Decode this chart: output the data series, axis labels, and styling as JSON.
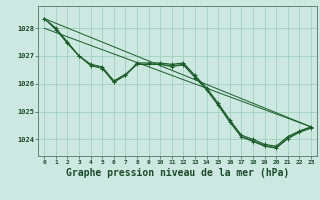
{
  "background_color": "#cce8e0",
  "grid_color": "#99ccbb",
  "line_color": "#1a5c28",
  "marker_color": "#1a5c28",
  "title": "Graphe pression niveau de la mer (hPa)",
  "title_fontsize": 7.0,
  "xlim": [
    -0.5,
    23.5
  ],
  "ylim": [
    1023.4,
    1028.8
  ],
  "yticks": [
    1024,
    1025,
    1026,
    1027,
    1028
  ],
  "xticks": [
    0,
    1,
    2,
    3,
    4,
    5,
    6,
    7,
    8,
    9,
    10,
    11,
    12,
    13,
    14,
    15,
    16,
    17,
    18,
    19,
    20,
    21,
    22,
    23
  ],
  "series_main": {
    "x": [
      0,
      1,
      2,
      3,
      4,
      5,
      6,
      7,
      8,
      9,
      10,
      11,
      12,
      13,
      14,
      15,
      16,
      17,
      18,
      19,
      20,
      21,
      22,
      23
    ],
    "y": [
      1028.35,
      1028.0,
      1027.5,
      1027.0,
      1026.7,
      1026.6,
      1026.1,
      1026.3,
      1026.75,
      1026.75,
      1026.75,
      1026.7,
      1026.75,
      1026.3,
      1025.85,
      1025.3,
      1024.7,
      1024.15,
      1024.0,
      1023.82,
      1023.75,
      1024.1,
      1024.3,
      1024.45
    ]
  },
  "series_smooth": {
    "x": [
      0,
      1,
      2,
      3,
      4,
      5,
      6,
      7,
      8,
      9,
      10,
      11,
      12,
      13,
      14,
      15,
      16,
      17,
      18,
      19,
      20,
      21,
      22,
      23
    ],
    "y": [
      1028.35,
      1028.0,
      1027.5,
      1027.0,
      1026.7,
      1026.6,
      1026.1,
      1026.35,
      1026.7,
      1026.7,
      1026.7,
      1026.65,
      1026.7,
      1026.25,
      1025.8,
      1025.25,
      1024.65,
      1024.1,
      1023.95,
      1023.78,
      1023.7,
      1024.05,
      1024.28,
      1024.42
    ]
  },
  "series_sparse": {
    "x": [
      0,
      1,
      2,
      3,
      4,
      5,
      6,
      7,
      8,
      9,
      10,
      11,
      12,
      13,
      14,
      15,
      16,
      17,
      18,
      19,
      20,
      21,
      22,
      23
    ],
    "y": [
      1028.35,
      1027.95,
      1027.45,
      1027.0,
      1026.65,
      1026.55,
      1026.05,
      1026.3,
      1026.7,
      1026.7,
      1026.7,
      1026.62,
      1026.68,
      1026.22,
      1025.78,
      1025.22,
      1024.62,
      1024.08,
      1023.92,
      1023.75,
      1023.68,
      1024.02,
      1024.25,
      1024.4
    ]
  },
  "series_linear1": {
    "x": [
      0,
      23
    ],
    "y": [
      1028.35,
      1024.45
    ]
  },
  "series_linear2": {
    "x": [
      0,
      23
    ],
    "y": [
      1028.0,
      1024.45
    ]
  }
}
